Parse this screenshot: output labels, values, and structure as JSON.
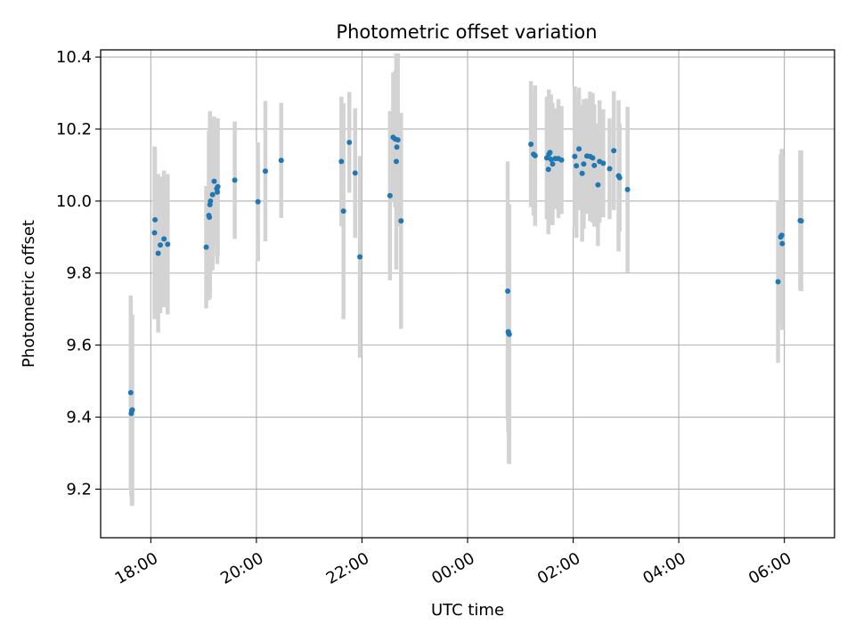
{
  "chart_data": {
    "type": "scatter",
    "title": "Photometric offset variation",
    "xlabel": "UTC time",
    "ylabel": "Photometric offset",
    "x_unit": "hours since 00:00 of first night (negative = before midnight)",
    "xlim": [
      -6.95,
      6.95
    ],
    "ylim": [
      9.065,
      10.42
    ],
    "grid": true,
    "x_ticks": [
      {
        "value": -6,
        "label": "18:00"
      },
      {
        "value": -4,
        "label": "20:00"
      },
      {
        "value": -2,
        "label": "22:00"
      },
      {
        "value": 0,
        "label": "00:00"
      },
      {
        "value": 2,
        "label": "02:00"
      },
      {
        "value": 4,
        "label": "04:00"
      },
      {
        "value": 6,
        "label": "06:00"
      }
    ],
    "y_ticks": [
      {
        "value": 9.2,
        "label": "9.2"
      },
      {
        "value": 9.4,
        "label": "9.4"
      },
      {
        "value": 9.6,
        "label": "9.6"
      },
      {
        "value": 9.8,
        "label": "9.8"
      },
      {
        "value": 10.0,
        "label": "10.0"
      },
      {
        "value": 10.2,
        "label": "10.2"
      },
      {
        "value": 10.4,
        "label": "10.4"
      }
    ],
    "colors": {
      "points": "#1f77b4",
      "errorbars": "#d3d3d3",
      "grid": "#b0b0b0",
      "axes": "#000000"
    },
    "series": [
      {
        "name": "offset",
        "x": [
          -6.38,
          -6.37,
          -6.36,
          -6.35,
          -5.93,
          -5.92,
          -5.86,
          -5.82,
          -5.75,
          -5.68,
          -4.95,
          -4.9,
          -4.89,
          -4.88,
          -4.87,
          -4.83,
          -4.8,
          -4.75,
          -4.74,
          -4.73,
          -4.41,
          -3.97,
          -3.83,
          -3.53,
          -2.39,
          -2.35,
          -2.24,
          -2.13,
          -2.04,
          -1.47,
          -1.41,
          -1.37,
          -1.35,
          -1.34,
          -1.32,
          -1.26,
          0.76,
          0.77,
          0.78,
          0.79,
          1.2,
          1.25,
          1.28,
          1.5,
          1.53,
          1.54,
          1.56,
          1.58,
          1.61,
          1.66,
          1.72,
          1.78,
          2.03,
          2.06,
          2.11,
          2.17,
          2.2,
          2.26,
          2.32,
          2.37,
          2.4,
          2.47,
          2.5,
          2.57,
          2.69,
          2.77,
          2.86,
          2.88,
          3.03,
          5.88,
          5.93,
          5.95,
          5.96,
          6.3,
          6.32
        ],
        "y": [
          9.468,
          9.41,
          9.418,
          9.42,
          9.912,
          9.948,
          9.855,
          9.878,
          9.895,
          9.88,
          9.872,
          9.96,
          9.955,
          9.99,
          10.0,
          10.018,
          10.055,
          10.035,
          10.025,
          10.04,
          10.058,
          9.998,
          10.083,
          10.113,
          10.11,
          9.972,
          10.163,
          10.078,
          9.845,
          10.015,
          10.177,
          10.172,
          10.11,
          10.15,
          10.17,
          9.945,
          9.75,
          9.637,
          9.632,
          9.63,
          10.158,
          10.13,
          10.126,
          10.12,
          10.088,
          10.13,
          10.135,
          10.116,
          10.103,
          10.118,
          10.118,
          10.114,
          10.124,
          10.098,
          10.145,
          10.077,
          10.103,
          10.125,
          10.124,
          10.12,
          10.099,
          10.045,
          10.11,
          10.105,
          10.09,
          10.14,
          10.07,
          10.065,
          10.032,
          9.776,
          9.9,
          9.905,
          9.882,
          9.946,
          9.945
        ],
        "err": [
          0.27,
          0.23,
          0.265,
          0.265,
          0.24,
          0.2,
          0.22,
          0.19,
          0.19,
          0.195,
          0.17,
          0.235,
          0.2,
          0.26,
          0.2,
          0.21,
          0.18,
          0.19,
          0.2,
          0.19,
          0.163,
          0.165,
          0.195,
          0.16,
          0.18,
          0.3,
          0.14,
          0.18,
          0.28,
          0.235,
          0.18,
          0.19,
          0.3,
          0.2,
          0.24,
          0.3,
          0.36,
          0.28,
          0.36,
          0.36,
          0.175,
          0.17,
          0.195,
          0.17,
          0.18,
          0.18,
          0.16,
          0.18,
          0.17,
          0.14,
          0.165,
          0.15,
          0.195,
          0.2,
          0.17,
          0.19,
          0.18,
          0.16,
          0.18,
          0.18,
          0.17,
          0.17,
          0.17,
          0.15,
          0.14,
          0.165,
          0.21,
          0.15,
          0.23,
          0.225,
          0.23,
          0.24,
          0.24,
          0.195,
          0.195
        ]
      }
    ]
  }
}
